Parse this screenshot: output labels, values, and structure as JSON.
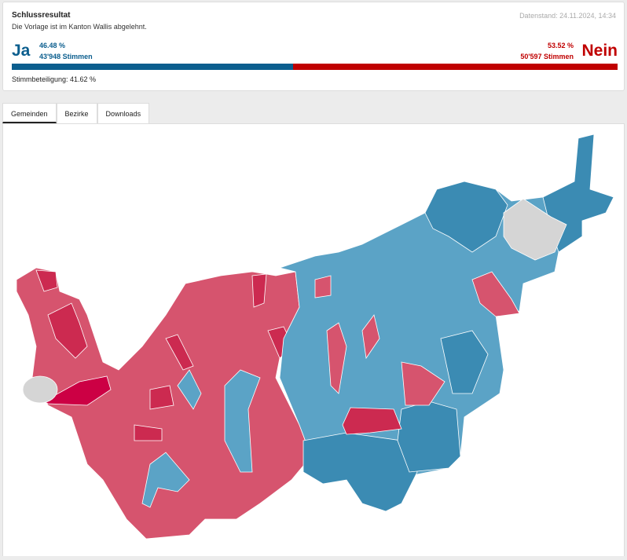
{
  "header": {
    "title": "Schlussresultat",
    "subtitle": "Die Vorlage ist im Kanton Wallis abgelehnt.",
    "timestamp": "Datenstand: 24.11.2024, 14:34"
  },
  "result": {
    "yes_label": "Ja",
    "yes_percent": {
      "value": 46.48,
      "label": "46.48 %"
    },
    "yes_votes": "43'948 Stimmen",
    "no_label": "Nein",
    "no_percent": {
      "value": 53.52,
      "label": "53.52 %"
    },
    "no_votes": "50'597 Stimmen",
    "turnout": "Stimmbeteiligung: 41.62 %"
  },
  "tabs": [
    "Gemeinden",
    "Bezirke",
    "Downloads"
  ]
}
